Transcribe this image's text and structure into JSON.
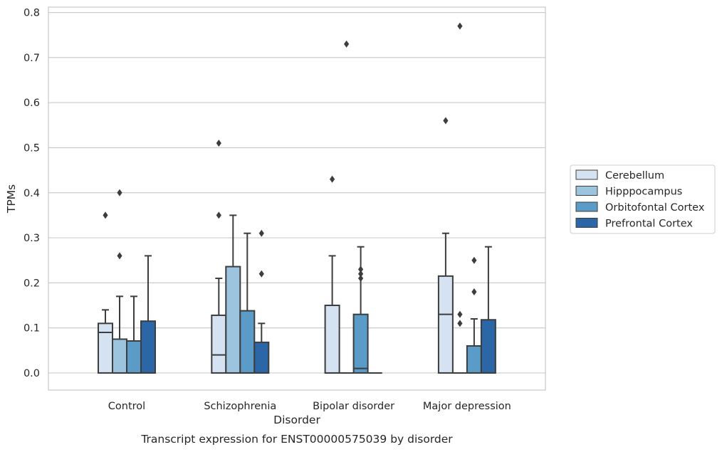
{
  "caption": "Transcript expression for ENST00000575039 by disorder",
  "chart_data": {
    "type": "box",
    "title": "",
    "xlabel": "Disorder",
    "ylabel": "TPMs",
    "ylim": [
      -0.038,
      0.812
    ],
    "yticks": [
      0.0,
      0.1,
      0.2,
      0.3,
      0.4,
      0.5,
      0.6,
      0.7,
      0.8
    ],
    "ytick_labels": [
      "0.0",
      "0.1",
      "0.2",
      "0.3",
      "0.4",
      "0.5",
      "0.6",
      "0.7",
      "0.8"
    ],
    "grid": "horizontal",
    "legend_position": "right",
    "categories": [
      "Control",
      "Schizophrenia",
      "Bipolar disorder",
      "Major depression"
    ],
    "series": [
      {
        "name": "Cerebellum",
        "color": "#d4e2f1",
        "boxes": [
          {
            "q1": 0.0,
            "median": 0.09,
            "q3": 0.11,
            "whislo": 0.0,
            "whishi": 0.14,
            "fliers": [
              0.35
            ]
          },
          {
            "q1": 0.0,
            "median": 0.04,
            "q3": 0.128,
            "whislo": 0.0,
            "whishi": 0.21,
            "fliers": [
              0.35,
              0.51
            ]
          },
          {
            "q1": 0.0,
            "median": 0.0,
            "q3": 0.15,
            "whislo": 0.0,
            "whishi": 0.26,
            "fliers": [
              0.43
            ]
          },
          {
            "q1": 0.0,
            "median": 0.13,
            "q3": 0.215,
            "whislo": 0.0,
            "whishi": 0.31,
            "fliers": [
              0.56
            ]
          }
        ]
      },
      {
        "name": "Hipppocampus",
        "color": "#9dc4de",
        "boxes": [
          {
            "q1": 0.0,
            "median": 0.0,
            "q3": 0.075,
            "whislo": 0.0,
            "whishi": 0.17,
            "fliers": [
              0.26,
              0.4
            ]
          },
          {
            "q1": 0.0,
            "median": 0.0,
            "q3": 0.236,
            "whislo": 0.0,
            "whishi": 0.35,
            "fliers": []
          },
          {
            "q1": 0.0,
            "median": 0.0,
            "q3": 0.0,
            "whislo": 0.0,
            "whishi": 0.0,
            "fliers": [
              0.73
            ]
          },
          {
            "q1": 0.0,
            "median": 0.0,
            "q3": 0.0,
            "whislo": 0.0,
            "whishi": 0.0,
            "fliers": [
              0.11,
              0.13,
              0.77
            ]
          }
        ]
      },
      {
        "name": "Orbitofontal Cortex",
        "color": "#5a9bc8",
        "boxes": [
          {
            "q1": 0.0,
            "median": 0.0,
            "q3": 0.071,
            "whislo": 0.0,
            "whishi": 0.17,
            "fliers": []
          },
          {
            "q1": 0.0,
            "median": 0.0,
            "q3": 0.138,
            "whislo": 0.0,
            "whishi": 0.31,
            "fliers": []
          },
          {
            "q1": 0.0,
            "median": 0.01,
            "q3": 0.13,
            "whislo": 0.0,
            "whishi": 0.28,
            "fliers": [
              0.21,
              0.22,
              0.23
            ]
          },
          {
            "q1": 0.0,
            "median": 0.0,
            "q3": 0.06,
            "whislo": 0.0,
            "whishi": 0.12,
            "fliers": [
              0.18,
              0.25
            ]
          }
        ]
      },
      {
        "name": "Prefrontal Cortex",
        "color": "#2b67a6",
        "boxes": [
          {
            "q1": 0.0,
            "median": 0.0,
            "q3": 0.115,
            "whislo": 0.0,
            "whishi": 0.26,
            "fliers": []
          },
          {
            "q1": 0.0,
            "median": 0.0,
            "q3": 0.068,
            "whislo": 0.0,
            "whishi": 0.11,
            "fliers": [
              0.22,
              0.31
            ]
          },
          {
            "q1": 0.0,
            "median": 0.0,
            "q3": 0.0,
            "whislo": 0.0,
            "whishi": 0.0,
            "fliers": []
          },
          {
            "q1": 0.0,
            "median": 0.0,
            "q3": 0.118,
            "whislo": 0.0,
            "whishi": 0.28,
            "fliers": []
          }
        ]
      }
    ]
  }
}
